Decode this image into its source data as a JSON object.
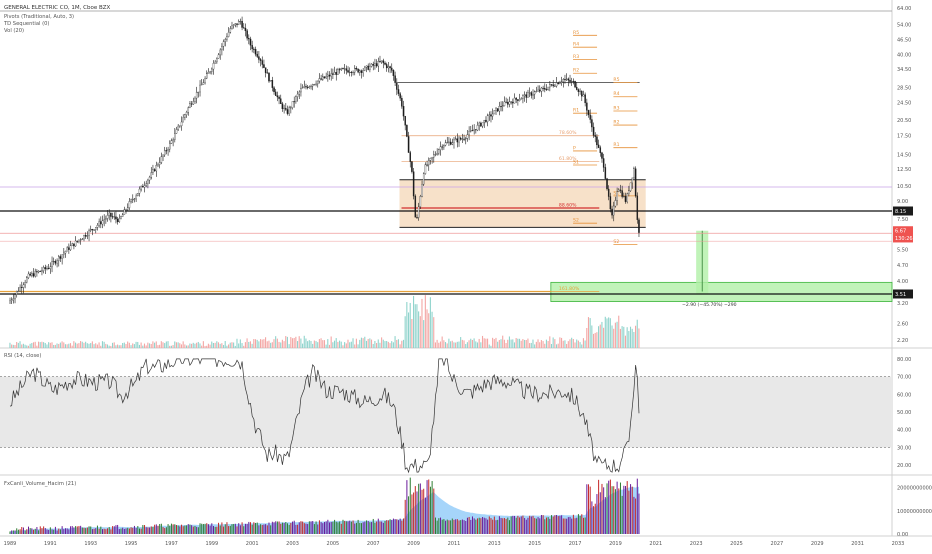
{
  "header": {
    "title": "GENERAL ELECTRIC CO, 1M, Cboe BZX",
    "indicators": [
      "Pivots (Traditional, Auto, 3)",
      "TD Sequential (0)",
      "Vol (20)"
    ]
  },
  "colors": {
    "up": "#26a69a",
    "down": "#ef5350",
    "candle": "#1b1b1b",
    "zone": "#f6dcc0",
    "green_zone": "#b2f0a8",
    "pivot": "#e69138",
    "rsi_line": "#333333"
  },
  "chart_data": [
    {
      "type": "candlestick",
      "title": "GENERAL ELECTRIC CO, 1M, Cboe BZX",
      "y_scale": "log",
      "y_ticks": [
        "64.00",
        "54.00",
        "46.50",
        "40.00",
        "34.50",
        "28.50",
        "24.50",
        "20.50",
        "17.50",
        "14.50",
        "12.50",
        "10.50",
        "9.00",
        "7.50",
        "5.50",
        "4.70",
        "4.00",
        "3.20",
        "2.60",
        "2.20"
      ],
      "x_ticks": [
        "1989",
        "1991",
        "1993",
        "1995",
        "1997",
        "1999",
        "2001",
        "2003",
        "2005",
        "2007",
        "2009",
        "2011",
        "2013",
        "2015",
        "2017",
        "2019",
        "2021",
        "2023",
        "2025",
        "2027",
        "2029",
        "2031",
        "2033"
      ],
      "price_path": [
        [
          1989.0,
          3.2
        ],
        [
          1990.0,
          4.2
        ],
        [
          1991.0,
          4.6
        ],
        [
          1992.0,
          5.6
        ],
        [
          1993.0,
          6.6
        ],
        [
          1994.0,
          7.8
        ],
        [
          1994.5,
          7.4
        ],
        [
          1995.0,
          8.8
        ],
        [
          1996.0,
          11.5
        ],
        [
          1997.0,
          16.0
        ],
        [
          1998.0,
          24.0
        ],
        [
          1999.0,
          34.0
        ],
        [
          1999.5,
          42.0
        ],
        [
          2000.0,
          52.0
        ],
        [
          2000.5,
          56.0
        ],
        [
          2001.0,
          44.0
        ],
        [
          2001.5,
          38.0
        ],
        [
          2002.0,
          30.0
        ],
        [
          2002.5,
          24.0
        ],
        [
          2002.8,
          22.0
        ],
        [
          2003.5,
          28.0
        ],
        [
          2004.5,
          31.0
        ],
        [
          2005.5,
          34.0
        ],
        [
          2006.5,
          34.0
        ],
        [
          2007.5,
          37.0
        ],
        [
          2008.0,
          34.0
        ],
        [
          2008.5,
          24.0
        ],
        [
          2009.0,
          12.0
        ],
        [
          2009.2,
          7.0
        ],
        [
          2009.6,
          12.5
        ],
        [
          2010.5,
          16.0
        ],
        [
          2011.5,
          17.0
        ],
        [
          2012.5,
          20.0
        ],
        [
          2013.5,
          24.0
        ],
        [
          2014.5,
          26.0
        ],
        [
          2015.5,
          28.0
        ],
        [
          2016.5,
          31.0
        ],
        [
          2017.0,
          30.0
        ],
        [
          2017.5,
          26.0
        ],
        [
          2018.0,
          18.0
        ],
        [
          2018.5,
          13.0
        ],
        [
          2018.9,
          7.5
        ],
        [
          2019.2,
          10.5
        ],
        [
          2019.6,
          9.0
        ],
        [
          2020.0,
          12.5
        ],
        [
          2020.2,
          6.67
        ]
      ],
      "pivot_labels": [
        "R5",
        "R4",
        "R3",
        "R2",
        "R1",
        "P",
        "S1",
        "S2",
        "R5",
        "R4",
        "R3",
        "R2",
        "R1",
        "S1",
        "S2"
      ],
      "fib_levels": [
        {
          "label": "78.60%",
          "value": 17.5
        },
        {
          "label": "61.80%",
          "value": 13.5
        },
        {
          "label": "88.60%",
          "value": 8.4
        },
        {
          "label": "161.80%",
          "value": 3.6
        }
      ],
      "price_labels": [
        {
          "text": "8.15",
          "value": 8.15,
          "color": "#1b1b1b"
        },
        {
          "text": "6.67",
          "value": 6.67,
          "color": "#ef5350"
        },
        {
          "text": "130:26",
          "value": 6.2,
          "color": "#ef5350"
        },
        {
          "text": "3.51",
          "value": 3.51,
          "color": "#1b1b1b"
        }
      ],
      "projection_text": "−2.90 (−45.70%) −290"
    },
    {
      "type": "line",
      "title": "RSI (14, close)",
      "y_ticks": [
        "80.00",
        "70.00",
        "60.00",
        "50.00",
        "40.00",
        "30.00",
        "20.00"
      ],
      "bands": [
        70,
        30
      ],
      "ylim": [
        15,
        85
      ]
    },
    {
      "type": "bar",
      "title": "FxCanli_Volume_Hacim (21)",
      "y_ticks": [
        "20000000000.00",
        "10000000000.00",
        "0.00"
      ]
    }
  ]
}
